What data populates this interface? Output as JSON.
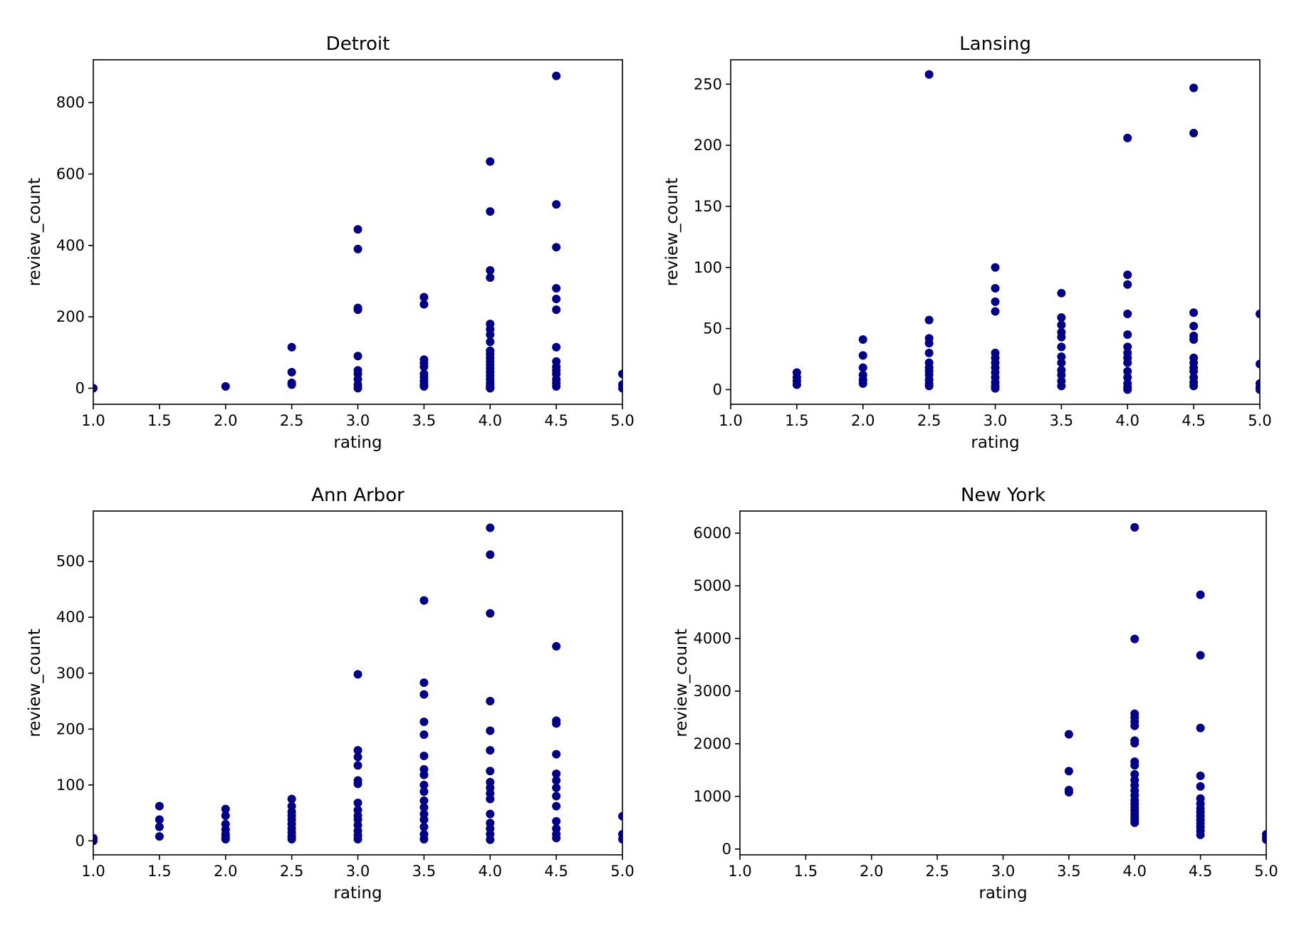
{
  "point_color": "#00008b",
  "chart_data": [
    {
      "type": "scatter",
      "title": "Detroit",
      "xlabel": "rating",
      "ylabel": "review_count",
      "xlim": [
        1.0,
        5.0
      ],
      "ylim": [
        -45,
        920
      ],
      "xticks": [
        1.0,
        1.5,
        2.0,
        2.5,
        3.0,
        3.5,
        4.0,
        4.5,
        5.0
      ],
      "xtick_labels": [
        "1.0",
        "1.5",
        "2.0",
        "2.5",
        "3.0",
        "3.5",
        "4.0",
        "4.5",
        "5.0"
      ],
      "yticks": [
        0,
        200,
        400,
        600,
        800
      ],
      "ytick_labels": [
        "0",
        "200",
        "400",
        "600",
        "800"
      ],
      "grid": false,
      "series": [
        {
          "x": [
            1.0,
            2.0,
            2.5,
            2.5,
            2.5,
            2.5,
            3.0,
            3.0,
            3.0,
            3.0,
            3.0,
            3.0,
            3.0,
            3.0,
            3.0,
            3.0,
            3.5,
            3.5,
            3.5,
            3.5,
            3.5,
            3.5,
            3.5,
            3.5,
            3.5,
            3.5,
            4.0,
            4.0,
            4.0,
            4.0,
            4.0,
            4.0,
            4.0,
            4.0,
            4.0,
            4.0,
            4.0,
            4.0,
            4.0,
            4.0,
            4.0,
            4.0,
            4.0,
            4.0,
            4.0,
            4.0,
            4.0,
            4.0,
            4.0,
            4.5,
            4.5,
            4.5,
            4.5,
            4.5,
            4.5,
            4.5,
            4.5,
            4.5,
            4.5,
            4.5,
            4.5,
            4.5,
            4.5,
            5.0,
            5.0,
            5.0
          ],
          "y": [
            0,
            5,
            115,
            45,
            15,
            10,
            445,
            390,
            225,
            220,
            90,
            50,
            40,
            25,
            10,
            0,
            255,
            235,
            80,
            70,
            60,
            40,
            30,
            20,
            10,
            5,
            635,
            495,
            330,
            310,
            180,
            165,
            150,
            130,
            105,
            95,
            85,
            75,
            65,
            55,
            45,
            35,
            25,
            15,
            10,
            5,
            2,
            0,
            0,
            875,
            515,
            395,
            280,
            250,
            220,
            115,
            75,
            60,
            50,
            40,
            25,
            15,
            5,
            40,
            10,
            0
          ]
        }
      ]
    },
    {
      "type": "scatter",
      "title": "Lansing",
      "xlabel": "rating",
      "ylabel": "review_count",
      "xlim": [
        1.0,
        5.0
      ],
      "ylim": [
        -12,
        270
      ],
      "xticks": [
        1.0,
        1.5,
        2.0,
        2.5,
        3.0,
        3.5,
        4.0,
        4.5,
        5.0
      ],
      "xtick_labels": [
        "1.0",
        "1.5",
        "2.0",
        "2.5",
        "3.0",
        "3.5",
        "4.0",
        "4.5",
        "5.0"
      ],
      "yticks": [
        0,
        50,
        100,
        150,
        200,
        250
      ],
      "ytick_labels": [
        "0",
        "50",
        "100",
        "150",
        "200",
        "250"
      ],
      "grid": false,
      "series": [
        {
          "x": [
            1.5,
            1.5,
            1.5,
            1.5,
            2.0,
            2.0,
            2.0,
            2.0,
            2.0,
            2.0,
            2.5,
            2.5,
            2.5,
            2.5,
            2.5,
            2.5,
            2.5,
            2.5,
            2.5,
            2.5,
            2.5,
            2.5,
            3.0,
            3.0,
            3.0,
            3.0,
            3.0,
            3.0,
            3.0,
            3.0,
            3.0,
            3.0,
            3.0,
            3.0,
            3.0,
            3.5,
            3.5,
            3.5,
            3.5,
            3.5,
            3.5,
            3.5,
            3.5,
            3.5,
            3.5,
            3.5,
            3.5,
            4.0,
            4.0,
            4.0,
            4.0,
            4.0,
            4.0,
            4.0,
            4.0,
            4.0,
            4.0,
            4.0,
            4.0,
            4.0,
            4.0,
            4.5,
            4.5,
            4.5,
            4.5,
            4.5,
            4.5,
            4.5,
            4.5,
            4.5,
            4.5,
            4.5,
            4.5,
            4.5,
            5.0,
            5.0,
            5.0,
            5.0,
            5.0
          ],
          "y": [
            14,
            10,
            7,
            4,
            41,
            28,
            18,
            12,
            8,
            5,
            258,
            57,
            42,
            38,
            30,
            22,
            18,
            15,
            12,
            8,
            5,
            3,
            100,
            83,
            72,
            64,
            30,
            26,
            22,
            18,
            14,
            10,
            6,
            3,
            1,
            79,
            59,
            53,
            47,
            43,
            35,
            27,
            22,
            16,
            12,
            7,
            3,
            206,
            94,
            86,
            62,
            45,
            35,
            30,
            26,
            22,
            15,
            10,
            5,
            2,
            0,
            247,
            210,
            63,
            52,
            44,
            41,
            26,
            22,
            18,
            15,
            10,
            6,
            3,
            62,
            21,
            5,
            2,
            0
          ]
        }
      ]
    },
    {
      "type": "scatter",
      "title": "Ann Arbor",
      "xlabel": "rating",
      "ylabel": "review_count",
      "xlim": [
        1.0,
        5.0
      ],
      "ylim": [
        -25,
        590
      ],
      "xticks": [
        1.0,
        1.5,
        2.0,
        2.5,
        3.0,
        3.5,
        4.0,
        4.5,
        5.0
      ],
      "xtick_labels": [
        "1.0",
        "1.5",
        "2.0",
        "2.5",
        "3.0",
        "3.5",
        "4.0",
        "4.5",
        "5.0"
      ],
      "yticks": [
        0,
        100,
        200,
        300,
        400,
        500
      ],
      "ytick_labels": [
        "0",
        "100",
        "200",
        "300",
        "400",
        "500"
      ],
      "grid": false,
      "series": [
        {
          "x": [
            1.0,
            1.0,
            1.5,
            1.5,
            1.5,
            1.5,
            2.0,
            2.0,
            2.0,
            2.0,
            2.0,
            2.0,
            2.0,
            2.5,
            2.5,
            2.5,
            2.5,
            2.5,
            2.5,
            2.5,
            2.5,
            2.5,
            2.5,
            3.0,
            3.0,
            3.0,
            3.0,
            3.0,
            3.0,
            3.0,
            3.0,
            3.0,
            3.0,
            3.0,
            3.0,
            3.0,
            3.0,
            3.5,
            3.5,
            3.5,
            3.5,
            3.5,
            3.5,
            3.5,
            3.5,
            3.5,
            3.5,
            3.5,
            3.5,
            3.5,
            3.5,
            3.5,
            3.5,
            3.5,
            4.0,
            4.0,
            4.0,
            4.0,
            4.0,
            4.0,
            4.0,
            4.0,
            4.0,
            4.0,
            4.0,
            4.0,
            4.0,
            4.0,
            4.0,
            4.0,
            4.5,
            4.5,
            4.5,
            4.5,
            4.5,
            4.5,
            4.5,
            4.5,
            4.5,
            4.5,
            4.5,
            4.5,
            4.5,
            5.0,
            5.0,
            5.0
          ],
          "y": [
            5,
            0,
            62,
            38,
            25,
            8,
            57,
            45,
            30,
            20,
            12,
            7,
            3,
            75,
            62,
            52,
            45,
            38,
            30,
            22,
            15,
            8,
            3,
            298,
            162,
            150,
            135,
            108,
            102,
            68,
            55,
            45,
            38,
            28,
            18,
            10,
            3,
            430,
            283,
            262,
            213,
            190,
            152,
            128,
            118,
            100,
            88,
            72,
            60,
            48,
            38,
            25,
            12,
            3,
            560,
            512,
            407,
            250,
            197,
            162,
            125,
            105,
            95,
            85,
            75,
            48,
            32,
            22,
            12,
            2,
            348,
            215,
            210,
            155,
            120,
            108,
            95,
            80,
            62,
            35,
            22,
            12,
            5,
            44,
            12,
            3
          ]
        }
      ]
    },
    {
      "type": "scatter",
      "title": "New York",
      "xlabel": "rating",
      "ylabel": "review_count",
      "xlim": [
        1.0,
        5.0
      ],
      "ylim": [
        -110,
        6420
      ],
      "xticks": [
        1.0,
        1.5,
        2.0,
        2.5,
        3.0,
        3.5,
        4.0,
        4.5,
        5.0
      ],
      "xtick_labels": [
        "1.0",
        "1.5",
        "2.0",
        "2.5",
        "3.0",
        "3.5",
        "4.0",
        "4.5",
        "5.0"
      ],
      "yticks": [
        0,
        1000,
        2000,
        3000,
        4000,
        5000,
        6000
      ],
      "ytick_labels": [
        "0",
        "1000",
        "2000",
        "3000",
        "4000",
        "5000",
        "6000"
      ],
      "grid": false,
      "series": [
        {
          "x": [
            3.5,
            3.5,
            3.5,
            3.5,
            4.0,
            4.0,
            4.0,
            4.0,
            4.0,
            4.0,
            4.0,
            4.0,
            4.0,
            4.0,
            4.0,
            4.0,
            4.0,
            4.0,
            4.0,
            4.0,
            4.0,
            4.0,
            4.0,
            4.0,
            4.0,
            4.0,
            4.0,
            4.5,
            4.5,
            4.5,
            4.5,
            4.5,
            4.5,
            4.5,
            4.5,
            4.5,
            4.5,
            4.5,
            4.5,
            4.5,
            4.5,
            4.5,
            5.0,
            5.0,
            5.0
          ],
          "y": [
            2180,
            1480,
            1120,
            1080,
            6110,
            3990,
            2570,
            2500,
            2420,
            2340,
            2060,
            2010,
            1660,
            1590,
            1420,
            1310,
            1210,
            1110,
            1020,
            930,
            860,
            790,
            730,
            660,
            610,
            560,
            500,
            4830,
            3680,
            2300,
            1390,
            1190,
            960,
            860,
            770,
            700,
            630,
            560,
            490,
            420,
            350,
            270,
            280,
            230,
            180
          ]
        }
      ]
    }
  ]
}
